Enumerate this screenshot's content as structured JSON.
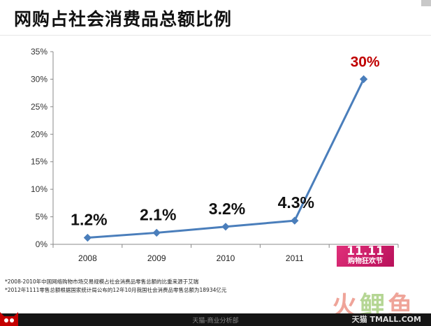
{
  "title": "网购占社会消费品总额比例",
  "chart_data": {
    "type": "line",
    "categories": [
      "2008",
      "2009",
      "2010",
      "2011",
      ""
    ],
    "values": [
      1.2,
      2.1,
      3.2,
      4.3,
      30
    ],
    "data_labels": [
      "1.2%",
      "2.1%",
      "3.2%",
      "4.3%",
      "30%"
    ],
    "yticks": [
      "0%",
      "5%",
      "10%",
      "15%",
      "20%",
      "25%",
      "30%",
      "35%"
    ],
    "ylim": [
      0,
      35
    ],
    "grid": false,
    "line_color": "#4a7ebb",
    "highlight_label_color": "#c00000"
  },
  "festival_logo": {
    "line1": "11.11",
    "line2": "购物狂欢节"
  },
  "footnotes": [
    "*2008-2010年中国网络购物市场交易规模占社会消费品零售总额的比重来源于艾瑞",
    "*2012年1111零售总额根据国家统计局公布的12年10月我国社会消费品零售总额为18934亿元"
  ],
  "footer": {
    "text": "天猫-商业分析部"
  },
  "watermark": {
    "part1": "火",
    "part2": "鲤",
    "part3": "鱼"
  },
  "site_mark": "天猫 TMALL.COM"
}
